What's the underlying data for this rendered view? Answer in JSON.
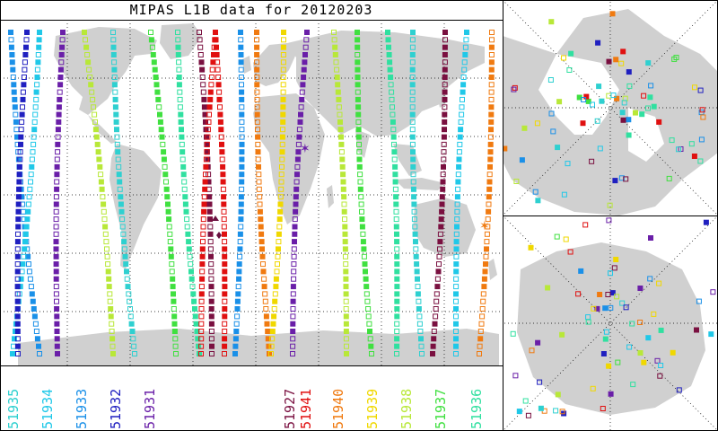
{
  "title": "MIPAS L1B data for 20120203",
  "legend": [
    {
      "label": "51935",
      "color": "#2fd0d0"
    },
    {
      "label": "51934",
      "color": "#20c8e8"
    },
    {
      "label": "51933",
      "color": "#1a90e8"
    },
    {
      "label": "51932",
      "color": "#2020c0"
    },
    {
      "label": "51931",
      "color": "#6a1fa8"
    },
    {
      "label": "51927",
      "color": "#7a1040"
    },
    {
      "label": "51941",
      "color": "#e01010"
    },
    {
      "label": "51940",
      "color": "#f07a10"
    },
    {
      "label": "51939",
      "color": "#f0d800"
    },
    {
      "label": "51938",
      "color": "#b8e838"
    },
    {
      "label": "51937",
      "color": "#40e040"
    },
    {
      "label": "51936",
      "color": "#30e0a0"
    }
  ],
  "colors": {
    "land": "#d0d0d0",
    "ocean": "#ffffff",
    "grid": "#000000",
    "frame": "#000000"
  }
}
